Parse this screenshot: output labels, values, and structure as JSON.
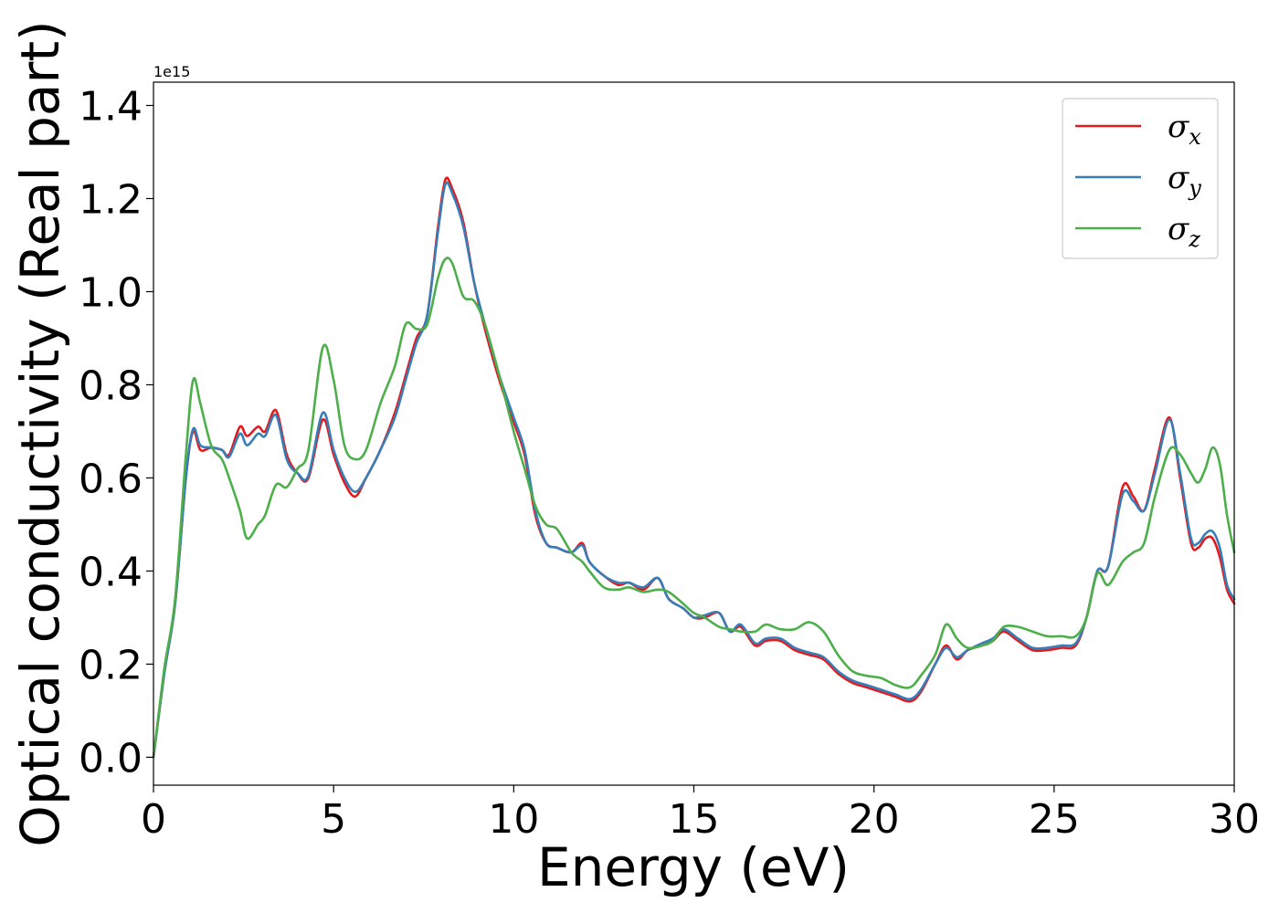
{
  "chart_data": {
    "type": "line",
    "title": "",
    "xlabel": "Energy (eV)",
    "ylabel": "Optical conductivity (Real part)",
    "y_scale_label": "1e15",
    "xlim": [
      0,
      30
    ],
    "ylim": [
      -0.06,
      1.45
    ],
    "xticks": [
      0,
      5,
      10,
      15,
      20,
      25,
      30
    ],
    "yticks": [
      0.0,
      0.2,
      0.4,
      0.6,
      0.8,
      1.0,
      1.2,
      1.4
    ],
    "ytick_labels": [
      "0.0",
      "0.2",
      "0.4",
      "0.6",
      "0.8",
      "1.0",
      "1.2",
      "1.4"
    ],
    "grid": false,
    "legend_position": "top-right",
    "series": [
      {
        "name": "σx",
        "symbol": "σ",
        "subscript": "x",
        "color": "#e41a1c",
        "x": [
          0,
          0.3,
          0.6,
          0.9,
          1.1,
          1.3,
          1.6,
          1.9,
          2.1,
          2.4,
          2.6,
          2.9,
          3.1,
          3.4,
          3.7,
          4.0,
          4.3,
          4.7,
          5.0,
          5.3,
          5.6,
          5.9,
          6.3,
          6.7,
          7.0,
          7.3,
          7.6,
          7.9,
          8.1,
          8.3,
          8.6,
          8.9,
          9.2,
          9.6,
          10.0,
          10.3,
          10.6,
          10.9,
          11.2,
          11.6,
          11.9,
          12.1,
          12.5,
          12.9,
          13.2,
          13.6,
          14.0,
          14.3,
          14.7,
          15.0,
          15.3,
          15.7,
          16.0,
          16.3,
          16.7,
          17.0,
          17.4,
          17.8,
          18.2,
          18.6,
          19.0,
          19.4,
          19.8,
          20.2,
          20.6,
          21.0,
          21.3,
          21.7,
          22.0,
          22.3,
          22.6,
          23.0,
          23.3,
          23.6,
          24.0,
          24.4,
          24.8,
          25.2,
          25.6,
          25.9,
          26.2,
          26.5,
          26.9,
          27.2,
          27.5,
          27.8,
          28.2,
          28.5,
          28.8,
          29.0,
          29.2,
          29.4,
          29.6,
          29.8,
          30.0
        ],
        "values": [
          0.0,
          0.18,
          0.33,
          0.6,
          0.7,
          0.66,
          0.665,
          0.66,
          0.65,
          0.71,
          0.69,
          0.71,
          0.7,
          0.745,
          0.65,
          0.61,
          0.6,
          0.725,
          0.65,
          0.59,
          0.56,
          0.6,
          0.66,
          0.74,
          0.82,
          0.9,
          0.95,
          1.14,
          1.24,
          1.22,
          1.15,
          1.02,
          0.92,
          0.81,
          0.72,
          0.65,
          0.52,
          0.46,
          0.45,
          0.44,
          0.46,
          0.42,
          0.39,
          0.37,
          0.375,
          0.36,
          0.385,
          0.34,
          0.32,
          0.3,
          0.3,
          0.31,
          0.27,
          0.28,
          0.24,
          0.25,
          0.25,
          0.23,
          0.22,
          0.21,
          0.18,
          0.16,
          0.15,
          0.14,
          0.13,
          0.12,
          0.14,
          0.2,
          0.24,
          0.21,
          0.23,
          0.24,
          0.25,
          0.27,
          0.25,
          0.23,
          0.23,
          0.235,
          0.24,
          0.3,
          0.4,
          0.41,
          0.58,
          0.56,
          0.53,
          0.62,
          0.73,
          0.6,
          0.46,
          0.45,
          0.47,
          0.47,
          0.43,
          0.36,
          0.33
        ]
      },
      {
        "name": "σy",
        "symbol": "σ",
        "subscript": "y",
        "color": "#377eb8",
        "x": [
          0,
          0.3,
          0.6,
          0.9,
          1.1,
          1.3,
          1.6,
          1.9,
          2.1,
          2.4,
          2.6,
          2.9,
          3.1,
          3.4,
          3.7,
          4.0,
          4.3,
          4.7,
          5.0,
          5.3,
          5.6,
          5.9,
          6.3,
          6.7,
          7.0,
          7.3,
          7.6,
          7.9,
          8.1,
          8.3,
          8.6,
          8.9,
          9.2,
          9.6,
          10.0,
          10.3,
          10.6,
          10.9,
          11.2,
          11.6,
          11.9,
          12.1,
          12.5,
          12.9,
          13.2,
          13.6,
          14.0,
          14.3,
          14.7,
          15.0,
          15.3,
          15.7,
          16.0,
          16.3,
          16.7,
          17.0,
          17.4,
          17.8,
          18.2,
          18.6,
          19.0,
          19.4,
          19.8,
          20.2,
          20.6,
          21.0,
          21.3,
          21.7,
          22.0,
          22.3,
          22.6,
          23.0,
          23.3,
          23.6,
          24.0,
          24.4,
          24.8,
          25.2,
          25.6,
          25.9,
          26.2,
          26.5,
          26.9,
          27.2,
          27.5,
          27.8,
          28.2,
          28.5,
          28.8,
          29.0,
          29.2,
          29.4,
          29.6,
          29.8,
          30.0
        ],
        "values": [
          0.0,
          0.18,
          0.33,
          0.6,
          0.705,
          0.67,
          0.665,
          0.66,
          0.645,
          0.695,
          0.67,
          0.695,
          0.69,
          0.735,
          0.64,
          0.61,
          0.605,
          0.74,
          0.66,
          0.6,
          0.57,
          0.6,
          0.66,
          0.73,
          0.81,
          0.89,
          0.95,
          1.13,
          1.23,
          1.21,
          1.14,
          1.02,
          0.93,
          0.82,
          0.73,
          0.66,
          0.53,
          0.46,
          0.45,
          0.44,
          0.455,
          0.42,
          0.39,
          0.375,
          0.375,
          0.365,
          0.385,
          0.34,
          0.32,
          0.3,
          0.305,
          0.31,
          0.27,
          0.285,
          0.245,
          0.255,
          0.255,
          0.235,
          0.225,
          0.215,
          0.185,
          0.165,
          0.155,
          0.145,
          0.135,
          0.125,
          0.145,
          0.2,
          0.235,
          0.215,
          0.23,
          0.245,
          0.255,
          0.275,
          0.255,
          0.235,
          0.235,
          0.24,
          0.245,
          0.3,
          0.4,
          0.41,
          0.565,
          0.55,
          0.53,
          0.61,
          0.725,
          0.61,
          0.47,
          0.46,
          0.48,
          0.485,
          0.45,
          0.37,
          0.34
        ]
      },
      {
        "name": "σz",
        "symbol": "σ",
        "subscript": "z",
        "color": "#4daf4a",
        "x": [
          0,
          0.3,
          0.6,
          0.9,
          1.1,
          1.3,
          1.6,
          1.9,
          2.1,
          2.4,
          2.6,
          2.9,
          3.1,
          3.4,
          3.7,
          4.0,
          4.3,
          4.7,
          5.0,
          5.3,
          5.6,
          5.9,
          6.3,
          6.7,
          7.0,
          7.3,
          7.6,
          7.9,
          8.1,
          8.3,
          8.6,
          8.9,
          9.2,
          9.6,
          10.0,
          10.3,
          10.6,
          10.9,
          11.2,
          11.6,
          11.9,
          12.1,
          12.5,
          12.9,
          13.2,
          13.6,
          14.0,
          14.3,
          14.7,
          15.0,
          15.3,
          15.7,
          16.0,
          16.3,
          16.7,
          17.0,
          17.4,
          17.8,
          18.2,
          18.6,
          19.0,
          19.4,
          19.8,
          20.2,
          20.6,
          21.0,
          21.3,
          21.7,
          22.0,
          22.3,
          22.6,
          23.0,
          23.3,
          23.6,
          24.0,
          24.4,
          24.8,
          25.2,
          25.6,
          25.9,
          26.2,
          26.5,
          26.9,
          27.2,
          27.5,
          27.8,
          28.2,
          28.5,
          28.8,
          29.0,
          29.2,
          29.4,
          29.6,
          29.8,
          30.0
        ],
        "values": [
          0.0,
          0.19,
          0.34,
          0.65,
          0.81,
          0.76,
          0.67,
          0.64,
          0.6,
          0.53,
          0.47,
          0.5,
          0.52,
          0.585,
          0.58,
          0.62,
          0.66,
          0.88,
          0.81,
          0.67,
          0.64,
          0.66,
          0.76,
          0.84,
          0.93,
          0.92,
          0.93,
          1.03,
          1.07,
          1.06,
          0.99,
          0.98,
          0.93,
          0.82,
          0.7,
          0.62,
          0.54,
          0.5,
          0.49,
          0.44,
          0.42,
          0.4,
          0.365,
          0.36,
          0.365,
          0.355,
          0.36,
          0.355,
          0.33,
          0.31,
          0.3,
          0.28,
          0.275,
          0.27,
          0.27,
          0.285,
          0.275,
          0.275,
          0.29,
          0.27,
          0.22,
          0.185,
          0.175,
          0.17,
          0.155,
          0.15,
          0.175,
          0.22,
          0.285,
          0.255,
          0.235,
          0.24,
          0.25,
          0.28,
          0.28,
          0.27,
          0.26,
          0.26,
          0.26,
          0.3,
          0.395,
          0.37,
          0.42,
          0.44,
          0.46,
          0.56,
          0.66,
          0.65,
          0.61,
          0.59,
          0.62,
          0.665,
          0.63,
          0.52,
          0.44
        ]
      }
    ]
  }
}
